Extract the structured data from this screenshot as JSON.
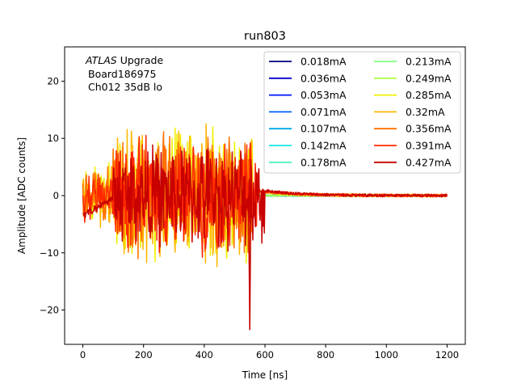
{
  "chart_data": {
    "type": "line",
    "title": "run803",
    "xlabel": "Time [ns]",
    "ylabel": "Amplitude [ADC counts]",
    "xlim": [
      -60,
      1260
    ],
    "ylim": [
      -26,
      26
    ],
    "xticks": [
      0,
      200,
      400,
      600,
      800,
      1000,
      1200
    ],
    "yticks": [
      -20,
      -10,
      0,
      10,
      20
    ],
    "grid": false,
    "legend": {
      "placement": "top-right",
      "columns": 2
    },
    "annotation": {
      "atlas": "ATLAS",
      "upgrade": " Upgrade",
      "line2": "Board186975",
      "line3": "Ch012 35dB lo"
    },
    "series": [
      {
        "name": "0.018mA",
        "color": "#00007f",
        "noise_ns": 0,
        "noise_amp": 0
      },
      {
        "name": "0.036mA",
        "color": "#0000c8",
        "noise_ns": 0,
        "noise_amp": 0
      },
      {
        "name": "0.053mA",
        "color": "#0014ff",
        "noise_ns": 0,
        "noise_amp": 0
      },
      {
        "name": "0.071mA",
        "color": "#0060ff",
        "noise_ns": 0,
        "noise_amp": 0
      },
      {
        "name": "0.107mA",
        "color": "#00a8e8",
        "noise_ns": 0,
        "noise_amp": 0
      },
      {
        "name": "0.142mA",
        "color": "#1ce6e6",
        "noise_ns": 0,
        "noise_amp": 0
      },
      {
        "name": "0.178mA",
        "color": "#4cf0c0",
        "noise_ns": 0,
        "noise_amp": 0
      },
      {
        "name": "0.213mA",
        "color": "#7cff7c",
        "noise_ns": 0,
        "noise_amp": 0
      },
      {
        "name": "0.249mA",
        "color": "#b0ff48",
        "noise_ns": 0,
        "noise_amp": 0
      },
      {
        "name": "0.285mA",
        "color": "#f0f000",
        "noise_ns": 560,
        "noise_amp": 13
      },
      {
        "name": "0.32mA",
        "color": "#ffb800",
        "noise_ns": 560,
        "noise_amp": 14
      },
      {
        "name": "0.356mA",
        "color": "#ff7000",
        "noise_ns": 560,
        "noise_amp": 12
      },
      {
        "name": "0.391mA",
        "color": "#ff2800",
        "noise_ns": 580,
        "noise_amp": 11
      },
      {
        "name": "0.427mA",
        "color": "#c80000",
        "noise_ns": 600,
        "noise_amp": 10
      }
    ]
  }
}
